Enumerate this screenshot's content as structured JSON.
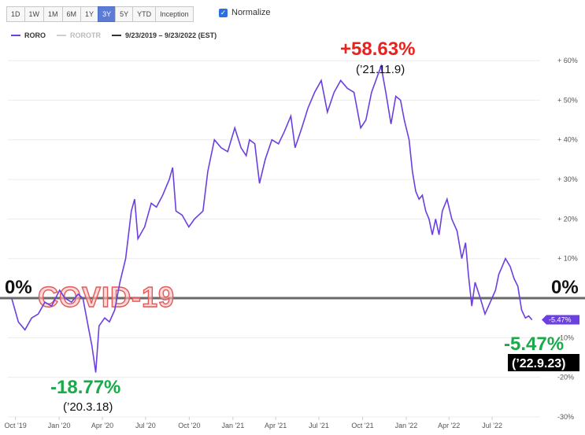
{
  "toolbar": {
    "ranges": [
      "1D",
      "1W",
      "1M",
      "6M",
      "1Y",
      "3Y",
      "5Y",
      "YTD",
      "Inception"
    ],
    "active_range": "3Y",
    "normalize_label": "Normalize",
    "normalize_checked": true
  },
  "legend": {
    "items": [
      {
        "label": "RORO",
        "color": "#6b3fe0"
      },
      {
        "label": "ROROTR",
        "color": "#cfcfcf"
      },
      {
        "label": "9/23/2019 – 9/23/2022 (EST)",
        "color": "#333333"
      }
    ]
  },
  "annotations": {
    "zero_left": "0%",
    "zero_right": "0%",
    "covid": "COVID-19",
    "max_value": "+58.63%",
    "max_date": "(’21.11.9)",
    "min_value": "-18.77%",
    "min_date": "(’20.3.18)",
    "end_value": "-5.47%",
    "end_date": "(’22.9.23)",
    "end_badge": "-5.47%",
    "colors": {
      "max": "#e8231f",
      "min": "#1aaa4a",
      "line": "#6b3fe0",
      "zero": "#6a6a6a"
    }
  },
  "chart_data": {
    "type": "line",
    "series": [
      {
        "name": "RORO",
        "points": [
          [
            "2019-09-23",
            0
          ],
          [
            "2019-10-07",
            -6
          ],
          [
            "2019-10-21",
            -8
          ],
          [
            "2019-11-04",
            -5
          ],
          [
            "2019-11-18",
            -4
          ],
          [
            "2019-12-02",
            -1
          ],
          [
            "2019-12-16",
            -2
          ],
          [
            "2020-01-02",
            2
          ],
          [
            "2020-01-13",
            0
          ],
          [
            "2020-01-27",
            -1
          ],
          [
            "2020-02-10",
            1
          ],
          [
            "2020-02-20",
            0
          ],
          [
            "2020-03-02",
            -7
          ],
          [
            "2020-03-10",
            -12
          ],
          [
            "2020-03-18",
            -18.77
          ],
          [
            "2020-03-25",
            -7
          ],
          [
            "2020-04-06",
            -5
          ],
          [
            "2020-04-16",
            -6
          ],
          [
            "2020-04-27",
            -3
          ],
          [
            "2020-05-08",
            4
          ],
          [
            "2020-05-20",
            10
          ],
          [
            "2020-06-01",
            22
          ],
          [
            "2020-06-08",
            25
          ],
          [
            "2020-06-15",
            15
          ],
          [
            "2020-06-29",
            18
          ],
          [
            "2020-07-13",
            24
          ],
          [
            "2020-07-24",
            23
          ],
          [
            "2020-08-06",
            26
          ],
          [
            "2020-08-20",
            30
          ],
          [
            "2020-08-27",
            33
          ],
          [
            "2020-09-03",
            22
          ],
          [
            "2020-09-16",
            21
          ],
          [
            "2020-09-30",
            18
          ],
          [
            "2020-10-12",
            20
          ],
          [
            "2020-10-30",
            22
          ],
          [
            "2020-11-09",
            32
          ],
          [
            "2020-11-23",
            40
          ],
          [
            "2020-12-07",
            38
          ],
          [
            "2020-12-21",
            37
          ],
          [
            "2021-01-05",
            43
          ],
          [
            "2021-01-18",
            38
          ],
          [
            "2021-01-29",
            36
          ],
          [
            "2021-02-05",
            40
          ],
          [
            "2021-02-16",
            39
          ],
          [
            "2021-02-26",
            29
          ],
          [
            "2021-03-10",
            35
          ],
          [
            "2021-03-24",
            40
          ],
          [
            "2021-04-07",
            39
          ],
          [
            "2021-04-19",
            42
          ],
          [
            "2021-05-03",
            46
          ],
          [
            "2021-05-12",
            38
          ],
          [
            "2021-05-26",
            43
          ],
          [
            "2021-06-08",
            48
          ],
          [
            "2021-06-22",
            52
          ],
          [
            "2021-07-06",
            55
          ],
          [
            "2021-07-19",
            47
          ],
          [
            "2021-08-02",
            52
          ],
          [
            "2021-08-16",
            55
          ],
          [
            "2021-08-30",
            53
          ],
          [
            "2021-09-13",
            52
          ],
          [
            "2021-09-27",
            43
          ],
          [
            "2021-10-08",
            45
          ],
          [
            "2021-10-20",
            52
          ],
          [
            "2021-11-09",
            58.63
          ],
          [
            "2021-11-19",
            52
          ],
          [
            "2021-11-30",
            44
          ],
          [
            "2021-12-10",
            51
          ],
          [
            "2021-12-20",
            50
          ],
          [
            "2021-12-28",
            45
          ],
          [
            "2022-01-07",
            40
          ],
          [
            "2022-01-14",
            32
          ],
          [
            "2022-01-21",
            27
          ],
          [
            "2022-01-28",
            25
          ],
          [
            "2022-02-04",
            26
          ],
          [
            "2022-02-11",
            22
          ],
          [
            "2022-02-18",
            20
          ],
          [
            "2022-02-25",
            16
          ],
          [
            "2022-03-04",
            20
          ],
          [
            "2022-03-11",
            16
          ],
          [
            "2022-03-18",
            22
          ],
          [
            "2022-03-28",
            25
          ],
          [
            "2022-04-07",
            20
          ],
          [
            "2022-04-18",
            17
          ],
          [
            "2022-04-28",
            10
          ],
          [
            "2022-05-06",
            14
          ],
          [
            "2022-05-12",
            6
          ],
          [
            "2022-05-19",
            -2
          ],
          [
            "2022-05-26",
            4
          ],
          [
            "2022-06-06",
            0
          ],
          [
            "2022-06-16",
            -4
          ],
          [
            "2022-06-27",
            -1
          ],
          [
            "2022-07-08",
            2
          ],
          [
            "2022-07-15",
            6
          ],
          [
            "2022-07-22",
            8
          ],
          [
            "2022-07-29",
            10
          ],
          [
            "2022-08-08",
            8
          ],
          [
            "2022-08-16",
            5
          ],
          [
            "2022-08-24",
            3
          ],
          [
            "2022-09-01",
            -3
          ],
          [
            "2022-09-09",
            -5
          ],
          [
            "2022-09-16",
            -4.5
          ],
          [
            "2022-09-23",
            -5.47
          ]
        ]
      }
    ],
    "x_ticks": [
      [
        "2019-10-01",
        "Oct '19"
      ],
      [
        "2020-01-01",
        "Jan '20"
      ],
      [
        "2020-04-01",
        "Apr '20"
      ],
      [
        "2020-07-01",
        "Jul '20"
      ],
      [
        "2020-10-01",
        "Oct '20"
      ],
      [
        "2021-01-01",
        "Jan '21"
      ],
      [
        "2021-04-01",
        "Apr '21"
      ],
      [
        "2021-07-01",
        "Jul '21"
      ],
      [
        "2021-10-01",
        "Oct '21"
      ],
      [
        "2022-01-01",
        "Jan '22"
      ],
      [
        "2022-04-01",
        "Apr '22"
      ],
      [
        "2022-07-01",
        "Jul '22"
      ]
    ],
    "y_ticks": [
      [
        60,
        "+ 60%"
      ],
      [
        50,
        "+ 50%"
      ],
      [
        40,
        "+ 40%"
      ],
      [
        30,
        "+ 30%"
      ],
      [
        20,
        "+ 20%"
      ],
      [
        10,
        "+ 10%"
      ],
      [
        -10,
        "-10%"
      ],
      [
        -20,
        "-20%"
      ],
      [
        -30,
        "-30%"
      ]
    ],
    "ylim": [
      -30,
      63
    ],
    "xlim": [
      "2019-09-15",
      "2022-10-10"
    ],
    "grid": "horizontal",
    "end_value": -5.47
  }
}
